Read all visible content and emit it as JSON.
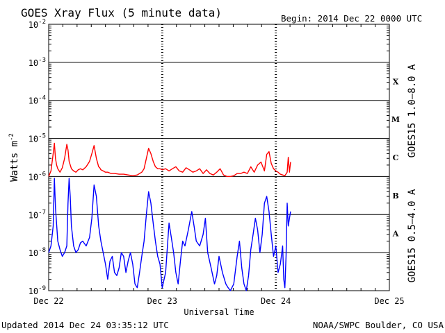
{
  "chart_data": {
    "type": "line",
    "title": "GOES Xray Flux (5 minute data)",
    "begin_label": "Begin:  2014 Dec 22 0000 UTC",
    "xlabel": "Universal Time",
    "ylabel": "Watts m",
    "ylabel_sup": "-2",
    "y_scale": "log",
    "ylim": [
      1e-09,
      0.01
    ],
    "y_ticks": [
      {
        "base": "10",
        "exp": "-9"
      },
      {
        "base": "10",
        "exp": "-8"
      },
      {
        "base": "10",
        "exp": "-7"
      },
      {
        "base": "10",
        "exp": "-6"
      },
      {
        "base": "10",
        "exp": "-5"
      },
      {
        "base": "10",
        "exp": "-4"
      },
      {
        "base": "10",
        "exp": "-3"
      },
      {
        "base": "10",
        "exp": "-2"
      }
    ],
    "x_unit": "days since 2014 Dec 22 0000 UTC",
    "xlim": [
      0,
      3
    ],
    "x_ticks": [
      "Dec 22",
      "Dec 23",
      "Dec 24",
      "Dec 25"
    ],
    "flare_classes": [
      "A",
      "B",
      "C",
      "M",
      "X"
    ],
    "grid": true,
    "legend_placement": "right",
    "series": [
      {
        "name": "GOES15 1.0–8.0 A",
        "color": "#ff0000",
        "x": [
          0.0,
          0.02,
          0.04,
          0.05,
          0.06,
          0.07,
          0.08,
          0.1,
          0.12,
          0.14,
          0.16,
          0.17,
          0.18,
          0.2,
          0.22,
          0.24,
          0.26,
          0.28,
          0.3,
          0.33,
          0.36,
          0.38,
          0.4,
          0.42,
          0.44,
          0.45,
          0.46,
          0.48,
          0.5,
          0.52,
          0.55,
          0.58,
          0.62,
          0.66,
          0.7,
          0.74,
          0.78,
          0.82,
          0.84,
          0.86,
          0.88,
          0.9,
          0.92,
          0.94,
          0.96,
          0.98,
          1.0,
          1.03,
          1.06,
          1.09,
          1.12,
          1.15,
          1.18,
          1.21,
          1.24,
          1.27,
          1.3,
          1.33,
          1.36,
          1.39,
          1.42,
          1.45,
          1.48,
          1.51,
          1.54,
          1.57,
          1.6,
          1.63,
          1.66,
          1.69,
          1.72,
          1.75,
          1.78,
          1.81,
          1.84,
          1.87,
          1.9,
          1.92,
          1.94,
          1.96,
          1.98,
          2.0,
          2.02,
          2.04,
          2.06,
          2.08,
          2.1,
          2.11,
          2.12,
          2.13
        ],
        "values": [
          1e-06,
          1.4e-06,
          4e-06,
          7.5e-06,
          3e-06,
          2e-06,
          1.6e-06,
          1.3e-06,
          1.7e-06,
          3e-06,
          7e-06,
          5e-06,
          2.5e-06,
          1.6e-06,
          1.4e-06,
          1.3e-06,
          1.5e-06,
          1.6e-06,
          1.5e-06,
          1.8e-06,
          2.5e-06,
          4e-06,
          6.5e-06,
          3e-06,
          1.8e-06,
          1.7e-06,
          1.5e-06,
          1.4e-06,
          1.3e-06,
          1.3e-06,
          1.2e-06,
          1.2e-06,
          1.15e-06,
          1.15e-06,
          1.1e-06,
          1.05e-06,
          1.1e-06,
          1.3e-06,
          1.6e-06,
          3e-06,
          5.5e-06,
          4e-06,
          2.5e-06,
          1.8e-06,
          1.6e-06,
          1.6e-06,
          1.5e-06,
          1.6e-06,
          1.4e-06,
          1.6e-06,
          1.8e-06,
          1.4e-06,
          1.3e-06,
          1.7e-06,
          1.5e-06,
          1.3e-06,
          1.4e-06,
          1.6e-06,
          1.2e-06,
          1.5e-06,
          1.2e-06,
          1.1e-06,
          1.3e-06,
          1.6e-06,
          1.1e-06,
          1e-06,
          1e-06,
          1.05e-06,
          1.2e-06,
          1.2e-06,
          1.3e-06,
          1.2e-06,
          1.8e-06,
          1.3e-06,
          2e-06,
          2.4e-06,
          1.4e-06,
          3.8e-06,
          4.5e-06,
          2.2e-06,
          1.6e-06,
          1.4e-06,
          1.3e-06,
          1.15e-06,
          1.1e-06,
          1.05e-06,
          1.3e-06,
          3.2e-06,
          1.3e-06,
          2.4e-06
        ]
      },
      {
        "name": "GOES15 0.5–4.0 A",
        "color": "#0000ff",
        "x": [
          0.0,
          0.02,
          0.04,
          0.05,
          0.06,
          0.08,
          0.1,
          0.12,
          0.14,
          0.16,
          0.17,
          0.18,
          0.19,
          0.2,
          0.22,
          0.24,
          0.26,
          0.28,
          0.3,
          0.33,
          0.36,
          0.38,
          0.4,
          0.42,
          0.44,
          0.46,
          0.48,
          0.5,
          0.52,
          0.54,
          0.56,
          0.58,
          0.6,
          0.62,
          0.64,
          0.66,
          0.68,
          0.7,
          0.72,
          0.74,
          0.76,
          0.78,
          0.8,
          0.82,
          0.84,
          0.86,
          0.88,
          0.9,
          0.92,
          0.94,
          0.96,
          0.98,
          1.0,
          1.03,
          1.06,
          1.08,
          1.1,
          1.12,
          1.14,
          1.16,
          1.18,
          1.2,
          1.23,
          1.26,
          1.28,
          1.3,
          1.33,
          1.36,
          1.38,
          1.4,
          1.43,
          1.46,
          1.48,
          1.5,
          1.53,
          1.56,
          1.58,
          1.6,
          1.63,
          1.66,
          1.68,
          1.7,
          1.72,
          1.74,
          1.76,
          1.78,
          1.8,
          1.82,
          1.84,
          1.86,
          1.88,
          1.9,
          1.92,
          1.94,
          1.96,
          1.98,
          2.0,
          2.02,
          2.04,
          2.06,
          2.07,
          2.08,
          2.09,
          2.1,
          2.11,
          2.12,
          2.13
        ],
        "values": [
          1e-08,
          1.5e-08,
          5e-08,
          9e-07,
          1.5e-07,
          2e-08,
          1.2e-08,
          8e-09,
          1e-08,
          1.5e-08,
          2e-07,
          9e-07,
          3e-07,
          5e-08,
          1.5e-08,
          1e-08,
          1.2e-08,
          1.8e-08,
          2e-08,
          1.5e-08,
          2.5e-08,
          8e-08,
          6e-07,
          3e-07,
          5e-08,
          2e-08,
          1e-08,
          5e-09,
          2e-09,
          6e-09,
          8e-09,
          3e-09,
          2.5e-09,
          4e-09,
          1e-08,
          8e-09,
          3e-09,
          6e-09,
          1e-08,
          5e-09,
          1.5e-09,
          1.2e-09,
          3e-09,
          8e-09,
          2e-08,
          1e-07,
          4e-07,
          2e-07,
          6e-08,
          2e-08,
          8e-09,
          5e-09,
          1.2e-09,
          3e-09,
          6e-08,
          2.5e-08,
          1e-08,
          3e-09,
          1.5e-09,
          6e-09,
          2e-08,
          1.5e-08,
          4e-08,
          1.2e-07,
          5e-08,
          2e-08,
          1.5e-08,
          3e-08,
          8e-08,
          1e-08,
          4e-09,
          1.5e-09,
          2.5e-09,
          8e-09,
          3e-09,
          1.5e-09,
          1.2e-09,
          1e-09,
          1.5e-09,
          8e-09,
          2e-08,
          4e-09,
          1.5e-09,
          1e-09,
          2.5e-09,
          1.2e-08,
          3e-08,
          8e-08,
          4e-08,
          1e-08,
          3e-08,
          2e-07,
          3e-07,
          1.2e-07,
          3e-08,
          8e-09,
          1.5e-08,
          3e-09,
          5e-09,
          1.5e-08,
          2e-09,
          1.2e-09,
          8e-09,
          2e-07,
          5e-08,
          8e-08,
          1.2e-07
        ]
      }
    ]
  },
  "footer": {
    "updated": "Updated 2014 Dec 24 03:35:12 UTC",
    "credit": "NOAA/SWPC Boulder, CO USA"
  }
}
